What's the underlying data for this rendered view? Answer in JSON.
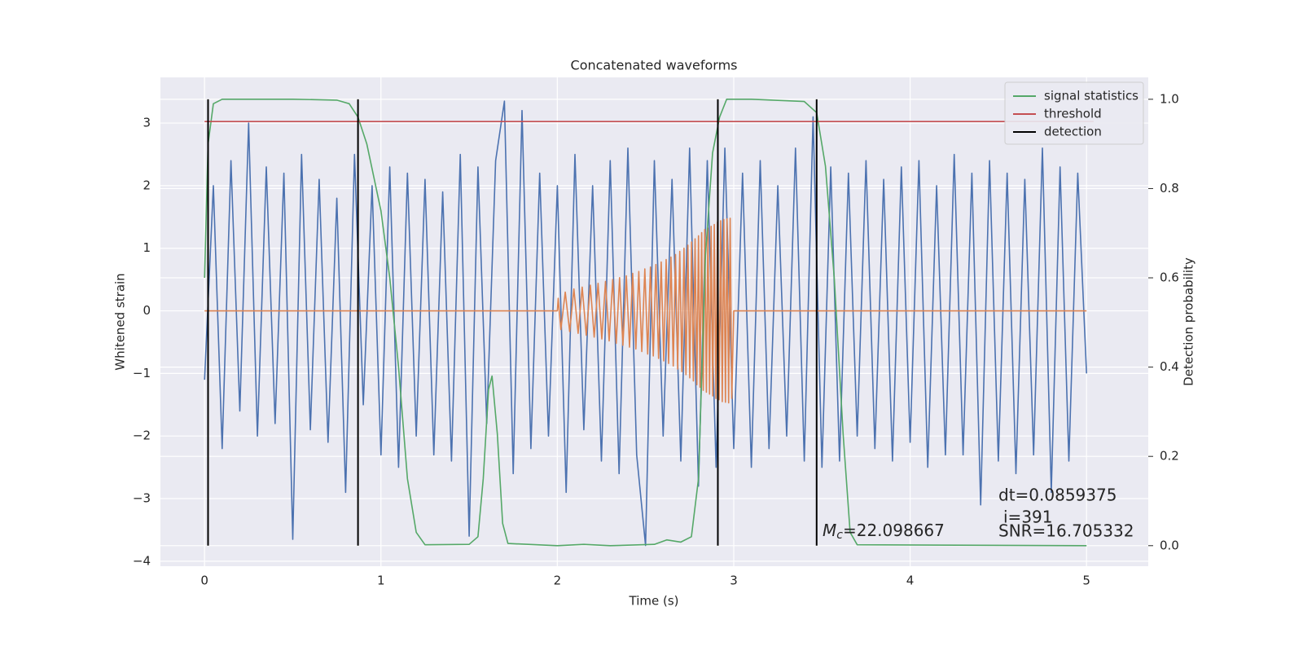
{
  "chart_data": {
    "type": "line",
    "title": "Concatenated waveforms",
    "xlabel": "Time (s)",
    "ylabel": "Whitened strain",
    "y2label": "Detection probability",
    "xlim": [
      -0.25,
      5.35
    ],
    "ylim": [
      -4.08,
      3.73
    ],
    "y2lim": [
      -0.046,
      1.049
    ],
    "xticks": [
      0,
      1,
      2,
      3,
      4,
      5
    ],
    "yticks": [
      {
        "value": -4,
        "label": "−4"
      },
      {
        "value": -3,
        "label": "−3"
      },
      {
        "value": -2,
        "label": "−2"
      },
      {
        "value": -1,
        "label": "−1"
      },
      0,
      1,
      2,
      3
    ],
    "y2ticks": [
      {
        "value": 0,
        "label": "0.0"
      },
      {
        "value": 0.2,
        "label": "0.2"
      },
      {
        "value": 0.4,
        "label": "0.4"
      },
      {
        "value": 0.6,
        "label": "0.6"
      },
      {
        "value": 0.8,
        "label": "0.8"
      },
      {
        "value": 1,
        "label": "1.0"
      }
    ],
    "grid": true,
    "legend_position": "upper right",
    "series": [
      {
        "color": "#4c72b0",
        "x": [
          0,
          0.05,
          0.1,
          0.15,
          0.2,
          0.25,
          0.3,
          0.35,
          0.4,
          0.45,
          0.5,
          0.55,
          0.6,
          0.65,
          0.7,
          0.75,
          0.8,
          0.85,
          0.9,
          0.95,
          1,
          1.05,
          1.1,
          1.15,
          1.2,
          1.25,
          1.3,
          1.35,
          1.4,
          1.45,
          1.5,
          1.55,
          1.6,
          1.65,
          1.7,
          1.75,
          1.8,
          1.85,
          1.9,
          1.95,
          2,
          2.05,
          2.1,
          2.15,
          2.2,
          2.25,
          2.3,
          2.35,
          2.4,
          2.45,
          2.5,
          2.55,
          2.6,
          2.65,
          2.7,
          2.75,
          2.8,
          2.85,
          2.9,
          2.95,
          3,
          3.05,
          3.1,
          3.15,
          3.2,
          3.25,
          3.3,
          3.35,
          3.4,
          3.45,
          3.5,
          3.55,
          3.6,
          3.65,
          3.7,
          3.75,
          3.8,
          3.85,
          3.9,
          3.95,
          4,
          4.05,
          4.1,
          4.15,
          4.2,
          4.25,
          4.3,
          4.35,
          4.4,
          4.45,
          4.5,
          4.55,
          4.6,
          4.65,
          4.7,
          4.75,
          4.8,
          4.85,
          4.9,
          4.95,
          5
        ],
        "values": [
          -1.1,
          2.0,
          -2.2,
          2.4,
          -1.6,
          3.0,
          -2.0,
          2.3,
          -1.8,
          2.2,
          -3.65,
          2.5,
          -1.9,
          2.1,
          -2.1,
          1.8,
          -2.9,
          2.5,
          -1.5,
          2.0,
          -2.3,
          2.3,
          -2.5,
          2.2,
          -2.0,
          2.1,
          -2.3,
          1.9,
          -2.4,
          2.5,
          -3.6,
          2.3,
          -1.8,
          2.4,
          3.35,
          -2.6,
          3.2,
          -2.2,
          2.2,
          -2.0,
          2.0,
          -2.9,
          2.5,
          -1.9,
          2.0,
          -2.4,
          2.4,
          -2.6,
          2.6,
          -2.3,
          -3.75,
          2.4,
          -2.0,
          2.1,
          -2.4,
          2.6,
          -2.8,
          2.4,
          -2.5,
          2.6,
          -2.2,
          2.2,
          -2.5,
          2.4,
          -2.2,
          2.0,
          -2.0,
          2.6,
          -2.4,
          3.1,
          -2.5,
          2.3,
          -2.4,
          2.2,
          -2.0,
          2.4,
          -2.2,
          2.1,
          -2.4,
          2.3,
          -2.1,
          2.4,
          -2.5,
          2.0,
          -2.3,
          2.5,
          -2.3,
          2.2,
          -3.1,
          2.4,
          -2.4,
          2.2,
          -2.6,
          2.1,
          -2.3,
          2.6,
          -2.9,
          2.3,
          -2.4,
          2.2,
          -1.0
        ]
      },
      {
        "color": "#dd8452",
        "x": [
          0,
          2.0,
          2.005,
          2.02,
          2.045,
          2.07,
          2.094,
          2.118,
          2.141,
          2.164,
          2.187,
          2.209,
          2.231,
          2.252,
          2.273,
          2.294,
          2.314,
          2.334,
          2.353,
          2.372,
          2.391,
          2.409,
          2.427,
          2.445,
          2.462,
          2.479,
          2.496,
          2.512,
          2.528,
          2.544,
          2.559,
          2.574,
          2.589,
          2.603,
          2.617,
          2.631,
          2.644,
          2.657,
          2.67,
          2.682,
          2.694,
          2.706,
          2.718,
          2.729,
          2.74,
          2.751,
          2.761,
          2.771,
          2.781,
          2.791,
          2.8,
          2.809,
          2.818,
          2.827,
          2.836,
          2.845,
          2.854,
          2.863,
          2.872,
          2.881,
          2.89,
          2.899,
          2.908,
          2.917,
          2.926,
          2.935,
          2.944,
          2.953,
          2.962,
          2.971,
          2.98,
          2.989,
          3.0,
          5.0
        ],
        "values": [
          0,
          0,
          0.2,
          -0.3,
          0.3,
          -0.33,
          0.35,
          -0.36,
          0.38,
          -0.39,
          0.41,
          -0.42,
          0.44,
          -0.45,
          0.47,
          -0.48,
          0.5,
          -0.52,
          0.53,
          -0.55,
          0.56,
          -0.58,
          0.6,
          -0.61,
          0.63,
          -0.65,
          0.67,
          -0.69,
          0.7,
          -0.72,
          0.74,
          -0.76,
          0.78,
          -0.8,
          0.82,
          -0.84,
          0.86,
          -0.88,
          0.9,
          -0.93,
          0.95,
          -0.97,
          1.0,
          -1.02,
          1.05,
          -1.07,
          1.1,
          -1.12,
          1.15,
          -1.18,
          1.2,
          -1.22,
          1.25,
          -1.27,
          1.3,
          -1.3,
          1.32,
          -1.33,
          1.35,
          -1.36,
          1.38,
          -1.4,
          1.42,
          -1.42,
          1.44,
          -1.45,
          1.46,
          -1.46,
          1.47,
          -1.47,
          1.48,
          -1.4,
          0,
          0
        ]
      },
      {
        "name": "signal statistics",
        "color": "#55a868",
        "axis": "y2",
        "x": [
          0,
          0.02,
          0.05,
          0.1,
          0.5,
          0.75,
          0.82,
          0.87,
          0.92,
          1.0,
          1.05,
          1.1,
          1.15,
          1.2,
          1.25,
          1.5,
          1.55,
          1.58,
          1.61,
          1.63,
          1.66,
          1.69,
          1.72,
          2.0,
          2.15,
          2.3,
          2.55,
          2.62,
          2.7,
          2.76,
          2.8,
          2.84,
          2.88,
          2.92,
          2.96,
          3.1,
          3.4,
          3.47,
          3.52,
          3.57,
          3.62,
          3.66,
          3.7,
          5.0
        ],
        "values": [
          0.6,
          0.9,
          0.99,
          1.0,
          1.0,
          0.998,
          0.99,
          0.96,
          0.9,
          0.75,
          0.6,
          0.4,
          0.15,
          0.03,
          0.002,
          0.003,
          0.02,
          0.15,
          0.35,
          0.38,
          0.25,
          0.05,
          0.005,
          0.0,
          0.003,
          0.0,
          0.003,
          0.013,
          0.008,
          0.02,
          0.15,
          0.65,
          0.88,
          0.96,
          1.0,
          1.0,
          0.995,
          0.97,
          0.85,
          0.6,
          0.25,
          0.03,
          0.002,
          0.0
        ]
      },
      {
        "name": "threshold",
        "color": "#c44e52",
        "axis": "y2",
        "x": [
          0,
          5.04
        ],
        "values": [
          0.95,
          0.95
        ]
      }
    ],
    "detection": {
      "name": "detection",
      "color": "#000000",
      "x": [
        0.02,
        0.87,
        2.91,
        3.47
      ],
      "ymin": 0,
      "ymax": 1
    },
    "annotations": {
      "dt": "dt=0.0859375",
      "i": "i=391",
      "snr": "SNR=16.705332",
      "mc": {
        "symbol": "M",
        "subscript": "c",
        "text": "=22.098667"
      }
    }
  }
}
